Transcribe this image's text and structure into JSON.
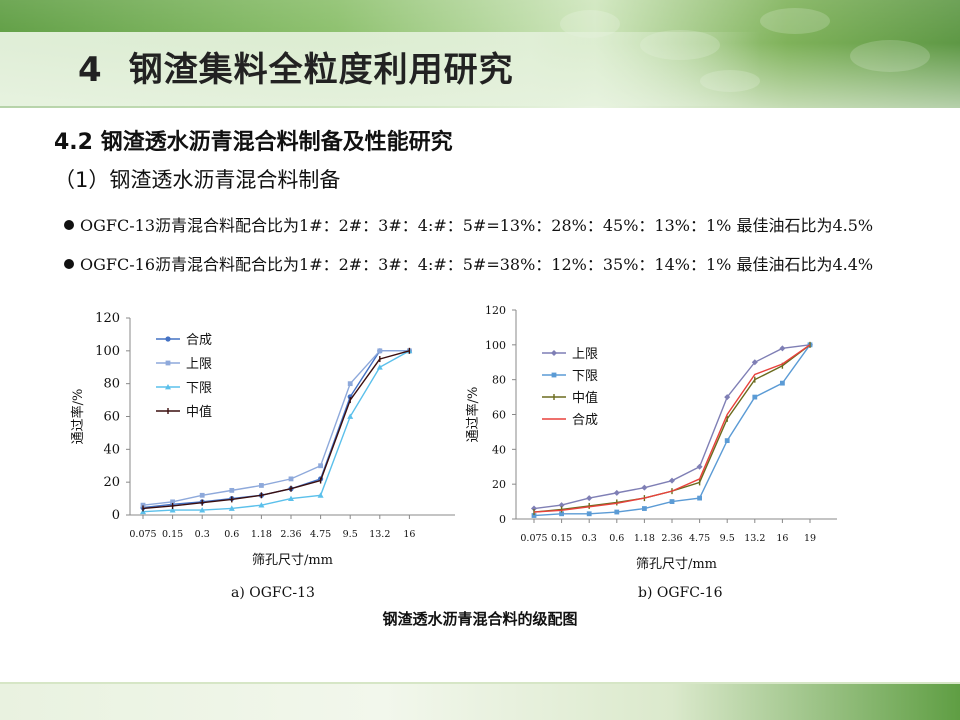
{
  "slide": {
    "title_num": "4",
    "title_text": "钢渣集料全粒度利用研究",
    "section": "4.2 钢渣透水沥青混合料制备及性能研究",
    "subsection": "（1）钢渣透水沥青混合料制备",
    "bullets": [
      "OGFC-13沥青混合料配合比为1#：2#：3#：4:#：5#=13%：28%：45%：13%：1%  最佳油石比为4.5%",
      "OGFC-16沥青混合料配合比为1#：2#：3#：4:#：5#=38%：12%：35%：14%：1% 最佳油石比为4.4%"
    ],
    "figure_title": "钢渣透水沥青混合料的级配图"
  },
  "chart_data": [
    {
      "type": "line",
      "caption": "a)  OGFC-13",
      "xlabel": "筛孔尺寸/mm",
      "ylabel": "通过率/%",
      "categories": [
        "0.075",
        "0.15",
        "0.3",
        "0.6",
        "1.18",
        "2.36",
        "4.75",
        "9.5",
        "13.2",
        "16"
      ],
      "ylim": [
        0,
        120
      ],
      "yticks": [
        0,
        20,
        40,
        60,
        80,
        100,
        120
      ],
      "legend_position": "top-left",
      "series": [
        {
          "name": "合成",
          "color": "#4472C4",
          "marker": "circle",
          "values": [
            4.5,
            6.5,
            8,
            10,
            12,
            16,
            22,
            72,
            100,
            100
          ]
        },
        {
          "name": "上限",
          "color": "#8EA9DB",
          "marker": "square",
          "values": [
            6,
            8,
            12,
            15,
            18,
            22,
            30,
            80,
            100,
            100
          ]
        },
        {
          "name": "下限",
          "color": "#5BC0EB",
          "marker": "triangle",
          "values": [
            2,
            3,
            3,
            4,
            6,
            10,
            12,
            60,
            90,
            100
          ]
        },
        {
          "name": "中值",
          "color": "#3a0e0e",
          "marker": "dash",
          "values": [
            4,
            5.5,
            7.5,
            9.5,
            12,
            16,
            21,
            70,
            95,
            100
          ]
        }
      ]
    },
    {
      "type": "line",
      "caption": "b)  OGFC-16",
      "xlabel": "筛孔尺寸/mm",
      "ylabel": "通过率/%",
      "categories": [
        "0.075",
        "0.15",
        "0.3",
        "0.6",
        "1.18",
        "2.36",
        "4.75",
        "9.5",
        "13.2",
        "16",
        "19"
      ],
      "ylim": [
        0,
        120
      ],
      "yticks": [
        0,
        20,
        40,
        60,
        80,
        100,
        120
      ],
      "legend_position": "top-left",
      "series": [
        {
          "name": "上限",
          "color": "#7F7FB5",
          "marker": "diamond",
          "values": [
            6,
            8,
            12,
            15,
            18,
            22,
            30,
            70,
            90,
            98,
            100
          ]
        },
        {
          "name": "下限",
          "color": "#5B9BD5",
          "marker": "square",
          "values": [
            2,
            3,
            3,
            4,
            6,
            10,
            12,
            45,
            70,
            78,
            100
          ]
        },
        {
          "name": "中值",
          "color": "#6B6B1E",
          "marker": "dash",
          "values": [
            4,
            5.5,
            7.5,
            9.5,
            12,
            16,
            21,
            57.5,
            80,
            88,
            100
          ]
        },
        {
          "name": "合成",
          "color": "#E8413C",
          "marker": "none",
          "values": [
            4,
            5,
            7,
            9,
            12,
            16,
            23,
            60,
            83,
            89,
            100
          ]
        }
      ]
    }
  ]
}
